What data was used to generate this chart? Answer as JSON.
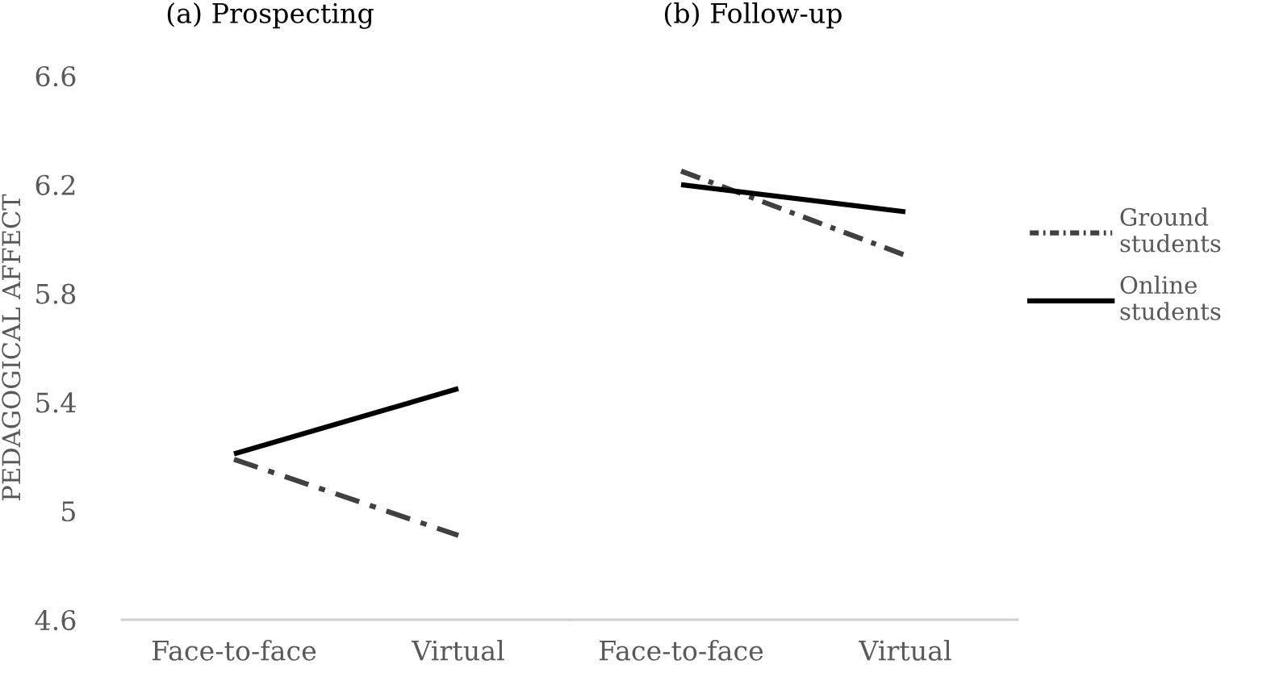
{
  "chart_data": [
    {
      "type": "line",
      "title": "(a) Prospecting",
      "ylabel": "PEDAGOGICAL AFFECT",
      "categories": [
        "Face-to-face",
        "Virtual"
      ],
      "ylim": [
        4.6,
        6.6
      ],
      "yticks": [
        4.6,
        5,
        5.4,
        5.8,
        6.2,
        6.6
      ],
      "grid": false,
      "legend": false,
      "marker": "none",
      "series": [
        {
          "color": "#404040",
          "line_style": "dashed",
          "values": [
            5.19,
            4.91
          ]
        },
        {
          "color": "#000000",
          "line_style": "solid",
          "values": [
            5.21,
            5.45
          ]
        }
      ]
    },
    {
      "type": "line",
      "title": "(b) Follow-up",
      "categories": [
        "Face-to-face",
        "Virtual"
      ],
      "ylim": [
        4.6,
        6.6
      ],
      "tick_labels": "x",
      "grid": false,
      "legend": "right",
      "marker": "none",
      "series": [
        {
          "name": "Ground students",
          "color": "#404040",
          "line_style": "dashed",
          "values": [
            6.25,
            5.94
          ]
        },
        {
          "name": "Online students",
          "color": "#000000",
          "line_style": "solid",
          "values": [
            6.2,
            6.1
          ]
        }
      ]
    }
  ]
}
